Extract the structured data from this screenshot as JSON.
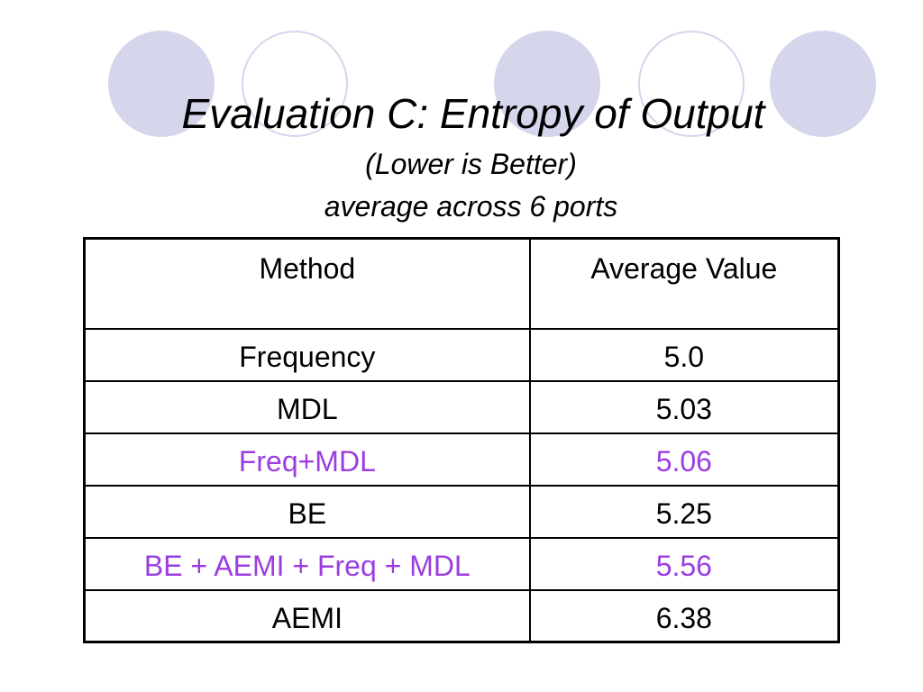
{
  "slide": {
    "title": "Evaluation C: Entropy of Output",
    "subtitle_1": "(Lower is Better)",
    "subtitle_2": "average across  6 ports"
  },
  "table": {
    "headers": [
      "Method",
      "Average Value"
    ],
    "rows": [
      {
        "method": "Frequency",
        "value": "5.0",
        "highlight": false
      },
      {
        "method": "MDL",
        "value": "5.03",
        "highlight": false
      },
      {
        "method": "Freq+MDL",
        "value": "5.06",
        "highlight": true
      },
      {
        "method": "BE",
        "value": "5.25",
        "highlight": false
      },
      {
        "method": "BE + AEMI + Freq + MDL",
        "value": "5.56",
        "highlight": true
      },
      {
        "method": "AEMI",
        "value": "6.38",
        "highlight": false
      }
    ]
  },
  "colors": {
    "decor_circle": "#d5d5ec",
    "highlight_text": "#9b3de0"
  }
}
